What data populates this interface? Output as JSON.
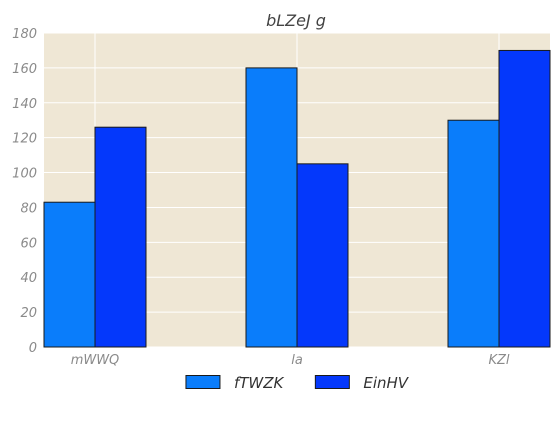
{
  "chart_data": {
    "type": "bar",
    "title": "bLZeJ g",
    "xlabel": "",
    "ylabel": "",
    "categories": [
      "mWWQ",
      "la",
      "KZl"
    ],
    "series": [
      {
        "name": "fTWZK",
        "color": "#0a7dfb",
        "values": [
          83,
          160,
          130
        ]
      },
      {
        "name": "EinHV",
        "color": "#0438fb",
        "values": [
          126,
          105,
          170
        ]
      }
    ],
    "ylim": [
      0,
      180
    ],
    "yticks": [
      0,
      20,
      40,
      60,
      80,
      100,
      120,
      140,
      160,
      180
    ],
    "grid": true,
    "legend": "bottom-center",
    "plot_background": "#efe7d5",
    "grid_color": "#ffffff",
    "bar_edge_color": "#1a1a1a"
  }
}
